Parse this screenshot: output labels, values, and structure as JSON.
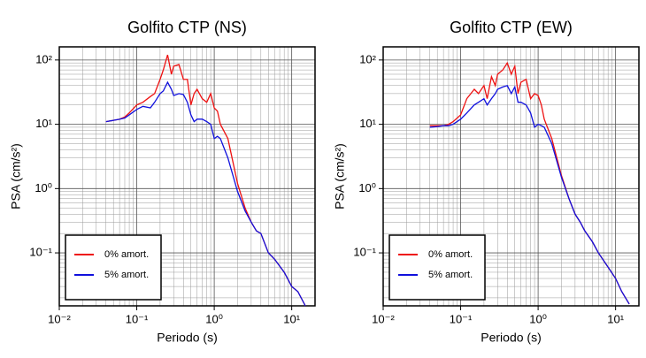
{
  "chart_data": [
    {
      "type": "line",
      "title": "Golfito CTP (NS)",
      "xlabel": "Periodo (s)",
      "ylabel": "PSA (cm/s²)",
      "xscale": "log",
      "yscale": "log",
      "grid": true,
      "legend": "lower left",
      "xlim": [
        0.01,
        20
      ],
      "ylim": [
        0.015,
        160
      ],
      "xticks": [
        {
          "value": 0.01,
          "label": "10⁻²"
        },
        {
          "value": 0.1,
          "label": "10⁻¹"
        },
        {
          "value": 1,
          "label": "10⁰"
        },
        {
          "value": 10,
          "label": "10¹"
        }
      ],
      "yticks": [
        {
          "value": 0.1,
          "label": "10⁻¹"
        },
        {
          "value": 1,
          "label": "10⁰"
        },
        {
          "value": 10,
          "label": "10¹"
        },
        {
          "value": 100,
          "label": "10²"
        }
      ],
      "x": [
        0.04,
        0.05,
        0.06,
        0.07,
        0.08,
        0.1,
        0.12,
        0.15,
        0.17,
        0.2,
        0.22,
        0.25,
        0.28,
        0.3,
        0.35,
        0.4,
        0.45,
        0.5,
        0.55,
        0.6,
        0.7,
        0.8,
        0.9,
        1.0,
        1.1,
        1.2,
        1.5,
        2,
        2.5,
        3,
        3.5,
        4,
        5,
        6,
        8,
        10,
        12,
        15
      ],
      "series": [
        {
          "name": "0% amort.",
          "color": "#ee1111",
          "values": [
            11,
            11.5,
            12,
            13,
            15,
            20,
            22,
            27,
            30,
            50,
            70,
            120,
            60,
            80,
            85,
            50,
            50,
            20,
            30,
            35,
            25,
            22,
            30,
            18,
            16,
            10,
            6,
            1.2,
            0.5,
            0.3,
            0.22,
            0.2,
            0.1,
            0.08,
            0.05,
            0.03,
            0.025,
            0.015
          ]
        },
        {
          "name": "5% amort.",
          "color": "#1010dd",
          "values": [
            11,
            11.5,
            12,
            12.5,
            14,
            17,
            19,
            18,
            22,
            30,
            33,
            45,
            35,
            28,
            30,
            29,
            22,
            14,
            11,
            12,
            12,
            11,
            10,
            6,
            6.5,
            6,
            3,
            0.9,
            0.45,
            0.3,
            0.22,
            0.2,
            0.1,
            0.08,
            0.05,
            0.03,
            0.025,
            0.015
          ]
        }
      ]
    },
    {
      "type": "line",
      "title": "Golfito CTP (EW)",
      "xlabel": "Periodo (s)",
      "ylabel": "PSA (cm/s²)",
      "xscale": "log",
      "yscale": "log",
      "grid": true,
      "legend": "lower left",
      "xlim": [
        0.01,
        20
      ],
      "ylim": [
        0.015,
        160
      ],
      "xticks": [
        {
          "value": 0.01,
          "label": "10⁻²"
        },
        {
          "value": 0.1,
          "label": "10⁻¹"
        },
        {
          "value": 1,
          "label": "10⁰"
        },
        {
          "value": 10,
          "label": "10¹"
        }
      ],
      "yticks": [
        {
          "value": 0.1,
          "label": "10⁻¹"
        },
        {
          "value": 1,
          "label": "10⁰"
        },
        {
          "value": 10,
          "label": "10¹"
        },
        {
          "value": 100,
          "label": "10²"
        }
      ],
      "x": [
        0.04,
        0.05,
        0.06,
        0.07,
        0.08,
        0.1,
        0.12,
        0.15,
        0.17,
        0.2,
        0.22,
        0.25,
        0.28,
        0.3,
        0.35,
        0.4,
        0.45,
        0.5,
        0.55,
        0.6,
        0.7,
        0.8,
        0.9,
        1.0,
        1.1,
        1.2,
        1.5,
        2,
        2.5,
        3,
        3.5,
        4,
        5,
        6,
        8,
        10,
        12,
        15
      ],
      "series": [
        {
          "name": "0% amort.",
          "color": "#ee1111",
          "values": [
            9.5,
            9.5,
            9.5,
            10,
            11,
            14,
            25,
            35,
            30,
            40,
            25,
            55,
            40,
            60,
            70,
            90,
            60,
            80,
            30,
            45,
            50,
            25,
            30,
            28,
            20,
            12,
            6,
            1.6,
            0.7,
            0.4,
            0.3,
            0.22,
            0.15,
            0.1,
            0.06,
            0.04,
            0.025,
            0.016
          ]
        },
        {
          "name": "5% amort.",
          "color": "#1010dd",
          "values": [
            9,
            9.2,
            9.5,
            9.5,
            10,
            12,
            15,
            20,
            22,
            25,
            20,
            25,
            30,
            35,
            38,
            40,
            30,
            38,
            22,
            22,
            20,
            15,
            9,
            10,
            9.5,
            9,
            5,
            1.5,
            0.7,
            0.4,
            0.3,
            0.22,
            0.15,
            0.1,
            0.06,
            0.04,
            0.025,
            0.016
          ]
        }
      ]
    }
  ]
}
